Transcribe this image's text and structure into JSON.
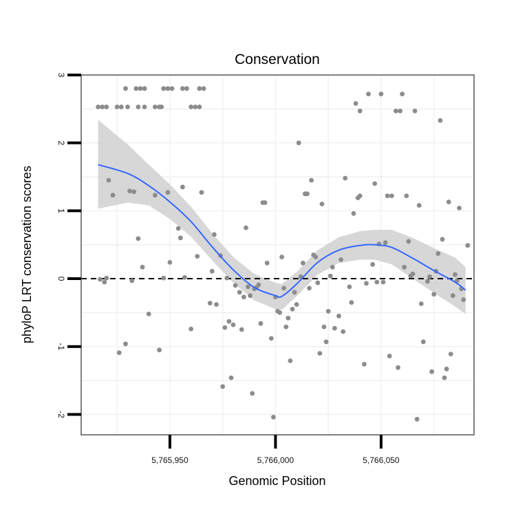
{
  "chart_data": {
    "type": "scatter",
    "title": "Conservation",
    "xlabel": "Genomic Position",
    "ylabel": "phyloP LRT conservation scores",
    "xlim": [
      5765908,
      5766094
    ],
    "ylim": [
      -2.3,
      3
    ],
    "x_ticks": [
      5765950,
      5766000,
      5766050
    ],
    "x_tick_labels": [
      "5,765,950",
      "5,766,000",
      "5,766,050"
    ],
    "y_ticks": [
      -2,
      -1,
      0,
      1,
      2,
      3
    ],
    "y_tick_labels": [
      "-2",
      "-1",
      "0",
      "1",
      "2",
      "3"
    ],
    "grid": true,
    "reference_line": {
      "y": 0,
      "style": "dashed"
    },
    "colors": {
      "points": "#8c8c8c",
      "smooth": "#3366ff",
      "band": "#d3d3d3",
      "border": "#7f7f7f",
      "grid": "#f0f0f0"
    },
    "points": [
      [
        5765916,
        2.53
      ],
      [
        5765918,
        2.53
      ],
      [
        5765920,
        2.53
      ],
      [
        5765925,
        2.53
      ],
      [
        5765927,
        2.53
      ],
      [
        5765930,
        2.53
      ],
      [
        5765929,
        2.8
      ],
      [
        5765934,
        2.8
      ],
      [
        5765936,
        2.8
      ],
      [
        5765938,
        2.8
      ],
      [
        5765935,
        2.53
      ],
      [
        5765938,
        2.53
      ],
      [
        5765943,
        2.53
      ],
      [
        5765945,
        2.53
      ],
      [
        5765946,
        2.53
      ],
      [
        5765947,
        2.8
      ],
      [
        5765949,
        2.8
      ],
      [
        5765951,
        2.8
      ],
      [
        5765956,
        2.8
      ],
      [
        5765958,
        2.8
      ],
      [
        5765960,
        2.53
      ],
      [
        5765962,
        2.53
      ],
      [
        5765964,
        2.53
      ],
      [
        5765964,
        2.8
      ],
      [
        5765966,
        2.8
      ],
      [
        5765917,
        -0.01
      ],
      [
        5765919,
        -0.05
      ],
      [
        5765920,
        0.01
      ],
      [
        5765921,
        1.45
      ],
      [
        5765923,
        1.23
      ],
      [
        5765926,
        -1.09
      ],
      [
        5765929,
        -0.96
      ],
      [
        5765931,
        1.29
      ],
      [
        5765932,
        -0.03
      ],
      [
        5765933,
        1.28
      ],
      [
        5765935,
        0.59
      ],
      [
        5765937,
        0.17
      ],
      [
        5765940,
        -0.52
      ],
      [
        5765943,
        1.23
      ],
      [
        5765945,
        -1.05
      ],
      [
        5765947,
        0.01
      ],
      [
        5765949,
        1.27
      ],
      [
        5765950,
        0.24
      ],
      [
        5765954,
        0.74
      ],
      [
        5765955,
        0.6
      ],
      [
        5765956,
        1.35
      ],
      [
        5765957,
        0.02
      ],
      [
        5765960,
        -0.74
      ],
      [
        5765963,
        0.33
      ],
      [
        5765965,
        1.27
      ],
      [
        5765969,
        -0.36
      ],
      [
        5765970,
        0.11
      ],
      [
        5765971,
        0.65
      ],
      [
        5765972,
        -0.38
      ],
      [
        5765974,
        0.34
      ],
      [
        5765975,
        -1.59
      ],
      [
        5765976,
        -0.72
      ],
      [
        5765977,
        0.01
      ],
      [
        5765978,
        -0.63
      ],
      [
        5765979,
        -1.46
      ],
      [
        5765980,
        -0.68
      ],
      [
        5765981,
        -0.1
      ],
      [
        5765983,
        -0.2
      ],
      [
        5765984,
        -0.75
      ],
      [
        5765985,
        -0.27
      ],
      [
        5765986,
        0.75
      ],
      [
        5765987,
        -0.12
      ],
      [
        5765988,
        -0.25
      ],
      [
        5765989,
        -1.69
      ],
      [
        5765990,
        -0.15
      ],
      [
        5765991,
        -0.13
      ],
      [
        5765992,
        -0.09
      ],
      [
        5765993,
        -0.66
      ],
      [
        5765994,
        1.12
      ],
      [
        5765995,
        1.12
      ],
      [
        5765996,
        0.23
      ],
      [
        5765998,
        -0.88
      ],
      [
        5765999,
        -2.04
      ],
      [
        5766000,
        -0.27
      ],
      [
        5766001,
        -0.48
      ],
      [
        5766002,
        -0.5
      ],
      [
        5766003,
        0.32
      ],
      [
        5766004,
        -0.14
      ],
      [
        5766005,
        -0.71
      ],
      [
        5766006,
        -0.58
      ],
      [
        5766007,
        -1.21
      ],
      [
        5766008,
        -0.45
      ],
      [
        5766009,
        -0.2
      ],
      [
        5766010,
        -0.38
      ],
      [
        5766011,
        2.0
      ],
      [
        5766012,
        0.03
      ],
      [
        5766013,
        0.23
      ],
      [
        5766014,
        1.25
      ],
      [
        5766015,
        1.25
      ],
      [
        5766016,
        -0.14
      ],
      [
        5766017,
        1.45
      ],
      [
        5766018,
        0.35
      ],
      [
        5766019,
        0.32
      ],
      [
        5766020,
        -0.06
      ],
      [
        5766021,
        -1.1
      ],
      [
        5766022,
        1.1
      ],
      [
        5766023,
        -0.71
      ],
      [
        5766024,
        -0.93
      ],
      [
        5766025,
        -0.48
      ],
      [
        5766026,
        0.04
      ],
      [
        5766027,
        0.17
      ],
      [
        5766028,
        -0.73
      ],
      [
        5766030,
        -0.55
      ],
      [
        5766031,
        0.28
      ],
      [
        5766032,
        -0.78
      ],
      [
        5766033,
        1.48
      ],
      [
        5766035,
        -0.12
      ],
      [
        5766036,
        -0.35
      ],
      [
        5766037,
        0.96
      ],
      [
        5766038,
        2.58
      ],
      [
        5766039,
        1.19
      ],
      [
        5766040,
        2.47
      ],
      [
        5766040,
        1.22
      ],
      [
        5766042,
        -1.26
      ],
      [
        5766043,
        -0.07
      ],
      [
        5766044,
        2.72
      ],
      [
        5766046,
        0.21
      ],
      [
        5766047,
        1.4
      ],
      [
        5766048,
        -0.05
      ],
      [
        5766049,
        0.51
      ],
      [
        5766050,
        2.72
      ],
      [
        5766051,
        -0.05
      ],
      [
        5766052,
        0.53
      ],
      [
        5766053,
        1.22
      ],
      [
        5766054,
        -1.14
      ],
      [
        5766055,
        1.22
      ],
      [
        5766057,
        2.47
      ],
      [
        5766058,
        -1.31
      ],
      [
        5766059,
        2.47
      ],
      [
        5766060,
        2.72
      ],
      [
        5766061,
        0.17
      ],
      [
        5766062,
        1.22
      ],
      [
        5766063,
        0.55
      ],
      [
        5766064,
        0.04
      ],
      [
        5766065,
        0.07
      ],
      [
        5766066,
        2.47
      ],
      [
        5766067,
        -2.07
      ],
      [
        5766068,
        1.08
      ],
      [
        5766069,
        -0.37
      ],
      [
        5766070,
        -0.93
      ],
      [
        5766072,
        -0.04
      ],
      [
        5766073,
        0.03
      ],
      [
        5766074,
        -1.37
      ],
      [
        5766075,
        -0.23
      ],
      [
        5766076,
        0.11
      ],
      [
        5766077,
        0.37
      ],
      [
        5766078,
        2.33
      ],
      [
        5766079,
        0.58
      ],
      [
        5766080,
        -1.46
      ],
      [
        5766081,
        -1.33
      ],
      [
        5766082,
        1.13
      ],
      [
        5766083,
        -1.11
      ],
      [
        5766084,
        -0.25
      ],
      [
        5766085,
        0.06
      ],
      [
        5766086,
        -0.03
      ],
      [
        5766087,
        1.04
      ],
      [
        5766088,
        -0.15
      ],
      [
        5766089,
        -0.31
      ],
      [
        5766091,
        0.49
      ]
    ],
    "smooth_x": [
      5765916,
      5765930,
      5765940,
      5765950,
      5765960,
      5765970,
      5765980,
      5765990,
      5766000,
      5766003,
      5766010,
      5766020,
      5766030,
      5766040,
      5766047,
      5766055,
      5766065,
      5766075,
      5766085,
      5766090
    ],
    "smooth_y": [
      1.68,
      1.55,
      1.37,
      1.13,
      0.84,
      0.47,
      0.13,
      -0.13,
      -0.25,
      -0.26,
      -0.08,
      0.24,
      0.42,
      0.49,
      0.5,
      0.46,
      0.3,
      0.12,
      -0.05,
      -0.17
    ],
    "band_upper": [
      2.34,
      1.98,
      1.68,
      1.39,
      1.06,
      0.67,
      0.32,
      0.07,
      -0.06,
      -0.08,
      0.1,
      0.42,
      0.61,
      0.7,
      0.72,
      0.72,
      0.6,
      0.45,
      0.31,
      0.17
    ],
    "band_lower": [
      1.03,
      1.12,
      1.08,
      0.88,
      0.62,
      0.27,
      -0.06,
      -0.32,
      -0.45,
      -0.46,
      -0.26,
      0.06,
      0.23,
      0.28,
      0.28,
      0.21,
      0.0,
      -0.21,
      -0.41,
      -0.52
    ]
  }
}
